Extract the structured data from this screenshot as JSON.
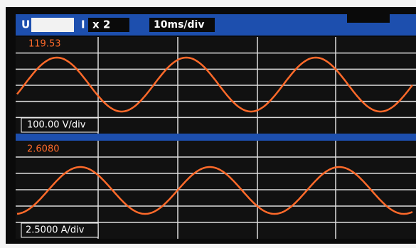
{
  "header": {
    "voltage_label": "U",
    "current_label": "I",
    "zoom": "x 2",
    "time_div": "10ms/div"
  },
  "panels": [
    {
      "peak": "119.53",
      "scale": "100.00 V/div"
    },
    {
      "peak": "2.6080",
      "scale": "2.5000 A/div"
    }
  ]
}
